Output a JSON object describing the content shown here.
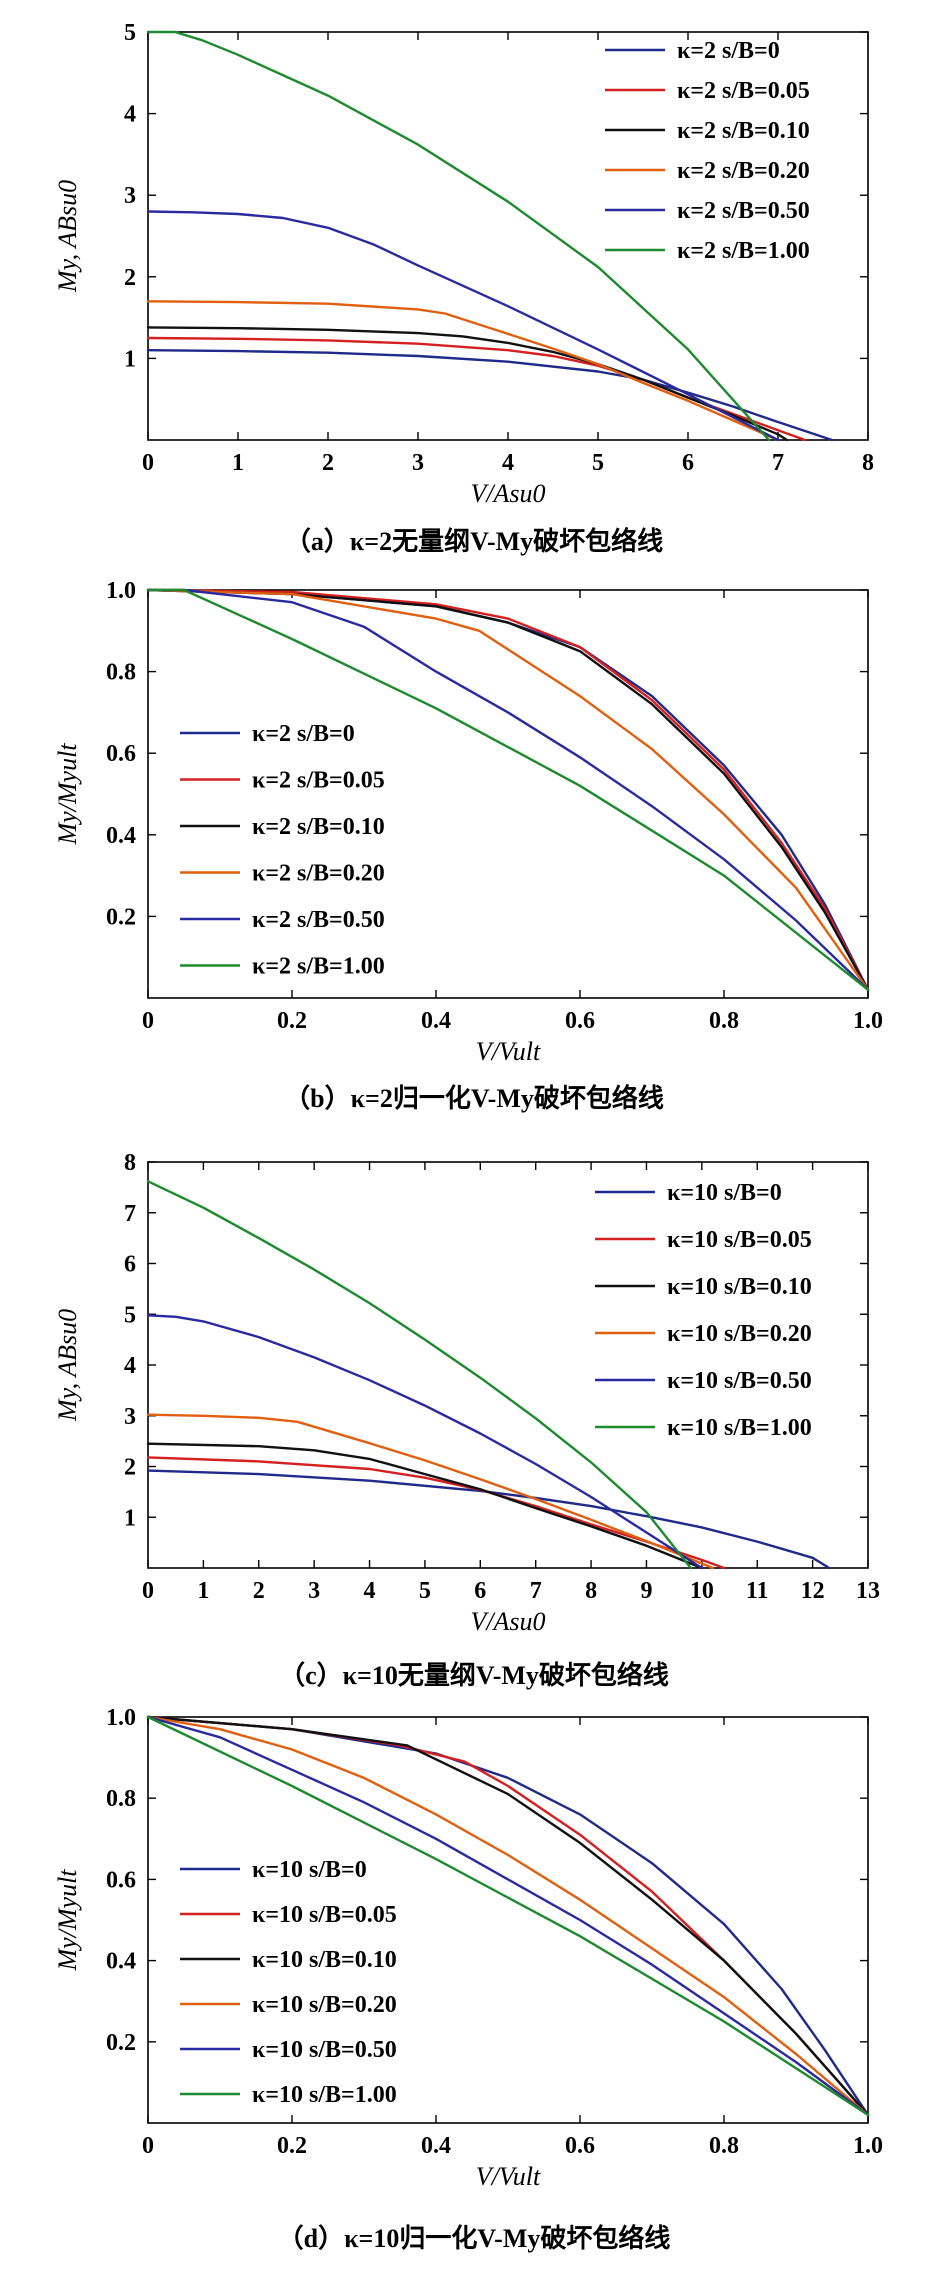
{
  "palette": {
    "blue": "#1f2a8a",
    "red": "#d42020",
    "black": "#111111",
    "orange": "#e06010",
    "navy": "#2a2aa0",
    "green": "#1e8a2e"
  },
  "chart_data": [
    {
      "type": "line",
      "id": "a",
      "caption": "（a）κ=2无量纲V-My破坏包络线",
      "xlabel": "V/Asu0",
      "ylabel": "My, ABsu0",
      "xlim": [
        0,
        8
      ],
      "ylim": [
        0,
        5
      ],
      "xticks": [
        "0",
        "1",
        "2",
        "3",
        "4",
        "5",
        "6",
        "7",
        "8"
      ],
      "yticks": [
        "1",
        "2",
        "3",
        "4",
        "5"
      ],
      "legend": "top-right",
      "series": [
        {
          "name": "κ=2 s/B=0",
          "color": "blue",
          "x": [
            0,
            1,
            2,
            3,
            4,
            5,
            5.5,
            6,
            6.5,
            7,
            7.6
          ],
          "y": [
            1.1,
            1.09,
            1.07,
            1.03,
            0.96,
            0.84,
            0.74,
            0.58,
            0.41,
            0.22,
            0
          ]
        },
        {
          "name": "κ=2 s/B=0.05",
          "color": "red",
          "x": [
            0,
            1,
            2,
            3,
            4,
            4.5,
            5,
            5.5,
            6,
            6.5,
            7,
            7.3
          ],
          "y": [
            1.25,
            1.24,
            1.22,
            1.18,
            1.1,
            1.03,
            0.91,
            0.74,
            0.52,
            0.32,
            0.12,
            0
          ]
        },
        {
          "name": "κ=2 s/B=0.10",
          "color": "black",
          "x": [
            0,
            1,
            2,
            3,
            3.5,
            4,
            4.5,
            5,
            5.5,
            6,
            6.5,
            7,
            7.1
          ],
          "y": [
            1.38,
            1.37,
            1.35,
            1.31,
            1.27,
            1.19,
            1.08,
            0.93,
            0.74,
            0.52,
            0.3,
            0.07,
            0
          ]
        },
        {
          "name": "κ=2 s/B=0.20",
          "color": "orange",
          "x": [
            0,
            1,
            2,
            3,
            3.3,
            4,
            4.5,
            5,
            5.5,
            6,
            6.5,
            7
          ],
          "y": [
            1.7,
            1.69,
            1.67,
            1.6,
            1.55,
            1.3,
            1.12,
            0.93,
            0.7,
            0.48,
            0.24,
            0
          ]
        },
        {
          "name": "κ=2 s/B=0.50",
          "color": "navy",
          "x": [
            0,
            0.5,
            1,
            1.5,
            2,
            2.5,
            3,
            4,
            5,
            6,
            6.5,
            7
          ],
          "y": [
            2.8,
            2.79,
            2.77,
            2.72,
            2.6,
            2.4,
            2.14,
            1.64,
            1.11,
            0.56,
            0.28,
            0
          ]
        },
        {
          "name": "κ=2 s/B=1.00",
          "color": "green",
          "x": [
            0,
            0.3,
            0.6,
            1,
            2,
            3,
            4,
            5,
            6,
            6.9
          ],
          "y": [
            5.0,
            5.0,
            4.9,
            4.72,
            4.22,
            3.62,
            2.92,
            2.12,
            1.11,
            0
          ]
        }
      ]
    },
    {
      "type": "line",
      "id": "b",
      "caption": "（b）κ=2归一化V-My破坏包络线",
      "xlabel": "V/Vult",
      "ylabel": "My/Myult",
      "xlim": [
        0,
        1
      ],
      "ylim": [
        0,
        1
      ],
      "xticks": [
        "0",
        "0.2",
        "0.4",
        "0.6",
        "0.8",
        "1.0"
      ],
      "yticks": [
        "0.2",
        "0.4",
        "0.6",
        "0.8",
        "1.0"
      ],
      "legend": "middle-left",
      "series": [
        {
          "name": "κ=2 s/B=0",
          "color": "blue",
          "x": [
            0,
            0.2,
            0.4,
            0.5,
            0.6,
            0.7,
            0.8,
            0.88,
            0.94,
            1.0
          ],
          "y": [
            1.0,
            0.99,
            0.96,
            0.92,
            0.86,
            0.74,
            0.57,
            0.4,
            0.23,
            0.02
          ]
        },
        {
          "name": "κ=2 s/B=0.05",
          "color": "red",
          "x": [
            0,
            0.2,
            0.4,
            0.5,
            0.6,
            0.7,
            0.8,
            0.88,
            0.94,
            1.0
          ],
          "y": [
            1.0,
            0.995,
            0.965,
            0.93,
            0.86,
            0.73,
            0.56,
            0.38,
            0.22,
            0.02
          ]
        },
        {
          "name": "κ=2 s/B=0.10",
          "color": "black",
          "x": [
            0,
            0.2,
            0.4,
            0.5,
            0.6,
            0.7,
            0.8,
            0.88,
            0.94,
            1.0
          ],
          "y": [
            1.0,
            0.99,
            0.96,
            0.92,
            0.85,
            0.72,
            0.55,
            0.37,
            0.21,
            0.02
          ]
        },
        {
          "name": "κ=2 s/B=0.20",
          "color": "orange",
          "x": [
            0,
            0.2,
            0.4,
            0.46,
            0.6,
            0.7,
            0.8,
            0.9,
            1.0
          ],
          "y": [
            1.0,
            0.99,
            0.93,
            0.9,
            0.74,
            0.61,
            0.45,
            0.27,
            0.02
          ]
        },
        {
          "name": "κ=2 s/B=0.50",
          "color": "navy",
          "x": [
            0,
            0.05,
            0.1,
            0.2,
            0.3,
            0.4,
            0.5,
            0.6,
            0.7,
            0.8,
            0.9,
            1.0
          ],
          "y": [
            1.0,
            1.0,
            0.99,
            0.97,
            0.91,
            0.8,
            0.7,
            0.59,
            0.47,
            0.34,
            0.19,
            0.02
          ]
        },
        {
          "name": "κ=2 s/B=1.00",
          "color": "green",
          "x": [
            0,
            0.05,
            0.1,
            0.2,
            0.4,
            0.6,
            0.8,
            1.0
          ],
          "y": [
            1.0,
            1.0,
            0.96,
            0.88,
            0.71,
            0.52,
            0.3,
            0.02
          ]
        }
      ]
    },
    {
      "type": "line",
      "id": "c",
      "caption": "（c）κ=10无量纲V-My破坏包络线",
      "xlabel": "V/Asu0",
      "ylabel": "My, ABsu0",
      "xlim": [
        0,
        13
      ],
      "ylim": [
        0,
        8
      ],
      "xticks": [
        "0",
        "1",
        "2",
        "3",
        "4",
        "5",
        "6",
        "7",
        "8",
        "9",
        "10",
        "11",
        "12",
        "13"
      ],
      "yticks": [
        "1",
        "2",
        "3",
        "4",
        "5",
        "6",
        "7",
        "8"
      ],
      "legend": "top-right",
      "series": [
        {
          "name": "κ=10 s/B=0",
          "color": "blue",
          "x": [
            0,
            2,
            4,
            6,
            7,
            8,
            9,
            10,
            11,
            12,
            12.3
          ],
          "y": [
            1.92,
            1.85,
            1.72,
            1.52,
            1.38,
            1.22,
            1.02,
            0.8,
            0.52,
            0.2,
            0
          ]
        },
        {
          "name": "κ=10 s/B=0.05",
          "color": "red",
          "x": [
            0,
            2,
            4,
            5,
            6,
            7,
            8,
            9,
            10,
            10.4
          ],
          "y": [
            2.18,
            2.1,
            1.95,
            1.78,
            1.54,
            1.22,
            0.86,
            0.52,
            0.16,
            0
          ]
        },
        {
          "name": "κ=10 s/B=0.10",
          "color": "black",
          "x": [
            0,
            2,
            3,
            4,
            5,
            6,
            7,
            8,
            9,
            10
          ],
          "y": [
            2.45,
            2.4,
            2.32,
            2.15,
            1.85,
            1.55,
            1.18,
            0.82,
            0.44,
            0
          ]
        },
        {
          "name": "κ=10 s/B=0.20",
          "color": "orange",
          "x": [
            0,
            1,
            2,
            2.7,
            4,
            5,
            6,
            7,
            8,
            9,
            10.2
          ],
          "y": [
            3.02,
            3.0,
            2.96,
            2.88,
            2.46,
            2.12,
            1.75,
            1.36,
            0.95,
            0.53,
            0
          ]
        },
        {
          "name": "κ=10 s/B=0.50",
          "color": "navy",
          "x": [
            0,
            0.5,
            1,
            2,
            3,
            4,
            5,
            6,
            7,
            8,
            9,
            10
          ],
          "y": [
            4.98,
            4.95,
            4.86,
            4.55,
            4.15,
            3.7,
            3.2,
            2.65,
            2.05,
            1.4,
            0.7,
            0
          ]
        },
        {
          "name": "κ=10 s/B=1.00",
          "color": "green",
          "x": [
            0,
            1,
            2,
            3,
            4,
            5,
            6,
            7,
            8,
            9,
            9.8
          ],
          "y": [
            7.62,
            7.1,
            6.5,
            5.88,
            5.22,
            4.5,
            3.75,
            2.95,
            2.08,
            1.1,
            0
          ]
        }
      ]
    },
    {
      "type": "line",
      "id": "d",
      "caption": "（d）κ=10归一化V-My破坏包络线",
      "xlabel": "V/Vult",
      "ylabel": "My/Myult",
      "xlim": [
        0,
        1
      ],
      "ylim": [
        0,
        1
      ],
      "xticks": [
        "0",
        "0.2",
        "0.4",
        "0.6",
        "0.8",
        "1.0"
      ],
      "yticks": [
        "0.2",
        "0.4",
        "0.6",
        "0.8",
        "1.0"
      ],
      "legend": "bottom-left",
      "series": [
        {
          "name": "κ=10 s/B=0",
          "color": "blue",
          "x": [
            0,
            0.2,
            0.4,
            0.5,
            0.6,
            0.7,
            0.8,
            0.88,
            0.94,
            1.0
          ],
          "y": [
            1.0,
            0.97,
            0.91,
            0.85,
            0.76,
            0.64,
            0.49,
            0.33,
            0.18,
            0.02
          ]
        },
        {
          "name": "κ=10 s/B=0.05",
          "color": "red",
          "x": [
            0,
            0.2,
            0.35,
            0.44,
            0.5,
            0.6,
            0.7,
            0.8,
            0.9,
            1.0
          ],
          "y": [
            1.0,
            0.97,
            0.93,
            0.89,
            0.83,
            0.71,
            0.57,
            0.4,
            0.22,
            0.02
          ]
        },
        {
          "name": "κ=10 s/B=0.10",
          "color": "black",
          "x": [
            0,
            0.2,
            0.36,
            0.5,
            0.6,
            0.7,
            0.8,
            0.9,
            1.0
          ],
          "y": [
            1.0,
            0.97,
            0.93,
            0.81,
            0.69,
            0.55,
            0.4,
            0.22,
            0.02
          ]
        },
        {
          "name": "κ=10 s/B=0.20",
          "color": "orange",
          "x": [
            0,
            0.1,
            0.2,
            0.3,
            0.4,
            0.5,
            0.6,
            0.7,
            0.8,
            0.9,
            1.0
          ],
          "y": [
            1.0,
            0.97,
            0.92,
            0.85,
            0.76,
            0.66,
            0.55,
            0.43,
            0.31,
            0.17,
            0.02
          ]
        },
        {
          "name": "κ=10 s/B=0.50",
          "color": "navy",
          "x": [
            0,
            0.1,
            0.2,
            0.3,
            0.4,
            0.5,
            0.6,
            0.7,
            0.8,
            0.9,
            1.0
          ],
          "y": [
            1.0,
            0.95,
            0.87,
            0.79,
            0.7,
            0.6,
            0.5,
            0.39,
            0.27,
            0.15,
            0.02
          ]
        },
        {
          "name": "κ=10 s/B=1.00",
          "color": "green",
          "x": [
            0,
            0.2,
            0.4,
            0.6,
            0.8,
            1.0
          ],
          "y": [
            1.0,
            0.83,
            0.65,
            0.46,
            0.25,
            0.02
          ]
        }
      ]
    }
  ]
}
